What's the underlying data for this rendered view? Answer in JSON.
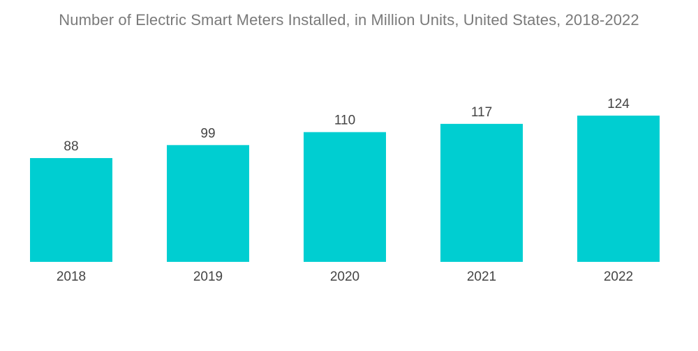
{
  "chart_data": {
    "type": "bar",
    "title": "Number of Electric Smart Meters Installed, in Million Units, United States, 2018-2022",
    "categories": [
      "2018",
      "2019",
      "2020",
      "2021",
      "2022"
    ],
    "values": [
      88,
      99,
      110,
      117,
      124
    ],
    "xlabel": "",
    "ylabel": "",
    "ylim": [
      0,
      124
    ],
    "grid": false,
    "legend": "none",
    "bar_color": "#00ced1"
  }
}
